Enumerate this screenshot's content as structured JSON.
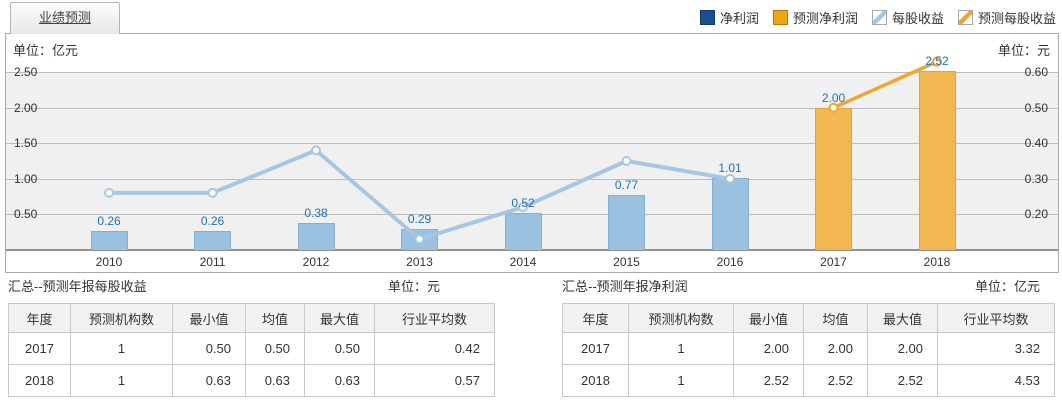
{
  "tab": {
    "label": "业绩预测"
  },
  "legend": {
    "items": [
      {
        "name": "net-profit",
        "label": "净利润",
        "swatch": "square",
        "color": "#1a4e8f"
      },
      {
        "name": "forecast-net-profit",
        "label": "预测净利润",
        "swatch": "square",
        "color": "#eea614"
      },
      {
        "name": "eps",
        "label": "每股收益",
        "swatch": "diagonal",
        "color": "#a6c7e3"
      },
      {
        "name": "forecast-eps",
        "label": "预测每股收益",
        "swatch": "diagonal",
        "color": "#f1a52f"
      }
    ]
  },
  "colors": {
    "bar_actual": "#9ac2e0",
    "bar_forecast": "#f3b851",
    "line_actual": "#a6c7e3",
    "line_forecast": "#f1a52f",
    "value_label": "#2273b8",
    "grid": "#bdbdbd",
    "plot_background": "#f0f0f0"
  },
  "chart_data": {
    "type": "bar+line",
    "x": [
      "2010",
      "2011",
      "2012",
      "2013",
      "2014",
      "2015",
      "2016",
      "2017",
      "2018"
    ],
    "left_axis": {
      "unit_label": "单位：亿元",
      "ticks": [
        "2.50",
        "2.00",
        "1.50",
        "1.00",
        "0.50"
      ],
      "grid_value_step": 0.5,
      "baseline_value": 0.0
    },
    "right_axis": {
      "unit_label": "单位：元",
      "ticks": [
        "0.60",
        "0.50",
        "0.40",
        "0.30",
        "0.20"
      ],
      "grid_value_step": 0.1,
      "baseline_value": 0.1
    },
    "grid": true,
    "legend_position": "top-right",
    "bars": {
      "name": "净利润 / 预测净利润",
      "unit": "亿元",
      "axis": "left",
      "points": [
        {
          "year": "2010",
          "value": 0.26,
          "label": "0.26",
          "kind": "actual"
        },
        {
          "year": "2011",
          "value": 0.26,
          "label": "0.26",
          "kind": "actual"
        },
        {
          "year": "2012",
          "value": 0.38,
          "label": "0.38",
          "kind": "actual"
        },
        {
          "year": "2013",
          "value": 0.29,
          "label": "0.29",
          "kind": "actual"
        },
        {
          "year": "2014",
          "value": 0.52,
          "label": "0.52",
          "kind": "actual"
        },
        {
          "year": "2015",
          "value": 0.77,
          "label": "0.77",
          "kind": "actual"
        },
        {
          "year": "2016",
          "value": 1.01,
          "label": "1.01",
          "kind": "actual"
        },
        {
          "year": "2017",
          "value": 2.0,
          "label": "2.00",
          "kind": "forecast"
        },
        {
          "year": "2018",
          "value": 2.52,
          "label": "2.52",
          "kind": "forecast"
        }
      ]
    },
    "line": {
      "name": "每股收益 / 预测每股收益",
      "unit": "元",
      "axis": "right",
      "points": [
        {
          "year": "2010",
          "value": 0.26,
          "kind": "actual"
        },
        {
          "year": "2011",
          "value": 0.26,
          "kind": "actual"
        },
        {
          "year": "2012",
          "value": 0.38,
          "kind": "actual"
        },
        {
          "year": "2013",
          "value": 0.13,
          "kind": "actual"
        },
        {
          "year": "2014",
          "value": 0.22,
          "kind": "actual"
        },
        {
          "year": "2015",
          "value": 0.35,
          "kind": "actual"
        },
        {
          "year": "2016",
          "value": 0.3,
          "kind": "actual"
        },
        {
          "year": "2017",
          "value": 0.5,
          "kind": "forecast"
        },
        {
          "year": "2018",
          "value": 0.63,
          "kind": "forecast"
        }
      ]
    }
  },
  "tables": [
    {
      "title": "汇总--预测年报每股收益",
      "unit": "单位：元",
      "headers": [
        "年度",
        "预测机构数",
        "最小值",
        "均值",
        "最大值",
        "行业平均数"
      ],
      "rows": [
        [
          "2017",
          "1",
          "0.50",
          "0.50",
          "0.50",
          "0.42"
        ],
        [
          "2018",
          "1",
          "0.63",
          "0.63",
          "0.63",
          "0.57"
        ]
      ]
    },
    {
      "title": "汇总--预测年报净利润",
      "unit": "单位：亿元",
      "headers": [
        "年度",
        "预测机构数",
        "最小值",
        "均值",
        "最大值",
        "行业平均数"
      ],
      "rows": [
        [
          "2017",
          "1",
          "2.00",
          "2.00",
          "2.00",
          "3.32"
        ],
        [
          "2018",
          "1",
          "2.52",
          "2.52",
          "2.52",
          "4.53"
        ]
      ]
    }
  ]
}
